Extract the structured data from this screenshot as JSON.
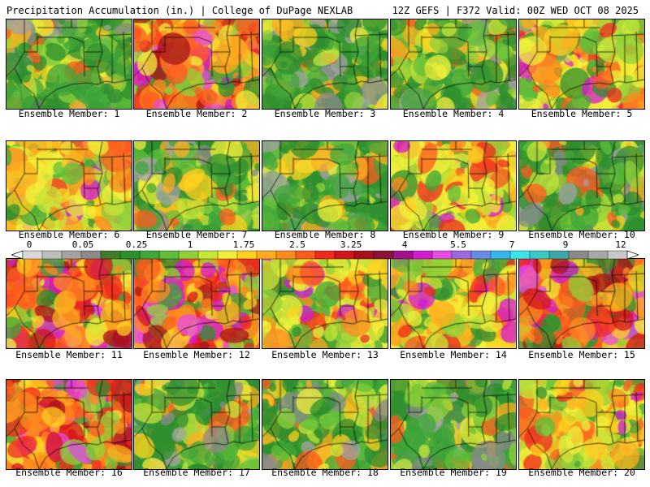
{
  "header": {
    "title": "Precipitation Accumulation (in.) | College of DuPage NEXLAB",
    "run_info": "12Z GEFS | F372 Valid: 00Z WED OCT 08 2025"
  },
  "panels": [
    {
      "label": "Ensemble Member: 1",
      "dominant": "green"
    },
    {
      "label": "Ensemble Member: 2",
      "dominant": "red"
    },
    {
      "label": "Ensemble Member: 3",
      "dominant": "green"
    },
    {
      "label": "Ensemble Member: 4",
      "dominant": "green"
    },
    {
      "label": "Ensemble Member: 5",
      "dominant": "yellow"
    },
    {
      "label": "Ensemble Member: 6",
      "dominant": "yellow"
    },
    {
      "label": "Ensemble Member: 7",
      "dominant": "green"
    },
    {
      "label": "Ensemble Member: 8",
      "dominant": "green"
    },
    {
      "label": "Ensemble Member: 9",
      "dominant": "yellow"
    },
    {
      "label": "Ensemble Member: 10",
      "dominant": "green"
    },
    {
      "label": "Ensemble Member: 11",
      "dominant": "red"
    },
    {
      "label": "Ensemble Member: 12",
      "dominant": "red"
    },
    {
      "label": "Ensemble Member: 13",
      "dominant": "yellow"
    },
    {
      "label": "Ensemble Member: 14",
      "dominant": "yellow"
    },
    {
      "label": "Ensemble Member: 15",
      "dominant": "red"
    },
    {
      "label": "Ensemble Member: 16",
      "dominant": "red"
    },
    {
      "label": "Ensemble Member: 17",
      "dominant": "green"
    },
    {
      "label": "Ensemble Member: 18",
      "dominant": "green"
    },
    {
      "label": "Ensemble Member: 19",
      "dominant": "green"
    },
    {
      "label": "Ensemble Member: 20",
      "dominant": "yellow"
    }
  ],
  "colorbar": {
    "labels": [
      "0",
      "0.05",
      "0.25",
      "1",
      "1.75",
      "2.5",
      "3.25",
      "4",
      "5.5",
      "7",
      "9",
      "12"
    ],
    "colors": [
      "#d9d9d9",
      "#bdbdbd",
      "#a3a3a3",
      "#8a8a8a",
      "#3e7d2a",
      "#2f8f2f",
      "#3fa63a",
      "#5fbf3a",
      "#8fd13a",
      "#c7e63a",
      "#f0f03a",
      "#ffd21f",
      "#ffad1f",
      "#ff8a1f",
      "#ff5a1f",
      "#f02a1f",
      "#d4141c",
      "#a8101a",
      "#8c0f3c",
      "#a4108c",
      "#d41ad4",
      "#e64ae6",
      "#9a6ae6",
      "#6a8ae6",
      "#3ab4f0",
      "#3ae6e6",
      "#3ac8c8",
      "#3aa8a8",
      "#8a8a8a",
      "#a8a8a8",
      "#c8c8c8"
    ]
  }
}
